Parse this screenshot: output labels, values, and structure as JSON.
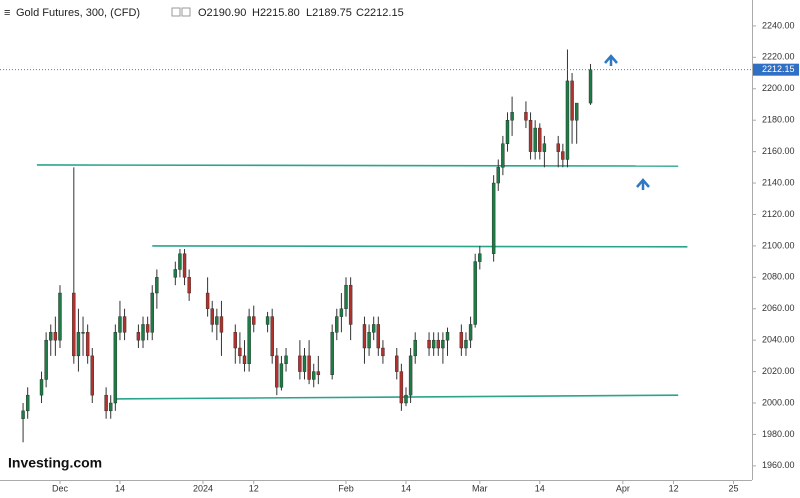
{
  "chart_data": {
    "type": "candlestick",
    "title": "Gold Futures, 300, (CFD)",
    "ohlc_header": [
      "O2190.90",
      "H2215.80",
      "L2189.75",
      "C2212.15"
    ],
    "logo": "Investing.com",
    "up_color": "#1e7b45",
    "down_color": "#b0322c",
    "x": [
      "2023-11-23",
      "2023-11-24",
      "2023-11-27",
      "2023-11-28",
      "2023-11-29",
      "2023-11-30",
      "2023-12-01",
      "2023-12-04",
      "2023-12-05",
      "2023-12-06",
      "2023-12-07",
      "2023-12-08",
      "2023-12-11",
      "2023-12-12",
      "2023-12-13",
      "2023-12-14",
      "2023-12-15",
      "2023-12-18",
      "2023-12-19",
      "2023-12-20",
      "2023-12-21",
      "2023-12-22",
      "2023-12-26",
      "2023-12-27",
      "2023-12-28",
      "2023-12-29",
      "2024-01-02",
      "2024-01-03",
      "2024-01-04",
      "2024-01-05",
      "2024-01-08",
      "2024-01-09",
      "2024-01-10",
      "2024-01-11",
      "2024-01-12",
      "2024-01-15",
      "2024-01-16",
      "2024-01-17",
      "2024-01-18",
      "2024-01-19",
      "2024-01-22",
      "2024-01-23",
      "2024-01-24",
      "2024-01-25",
      "2024-01-26",
      "2024-01-29",
      "2024-01-30",
      "2024-01-31",
      "2024-02-01",
      "2024-02-02",
      "2024-02-05",
      "2024-02-06",
      "2024-02-07",
      "2024-02-08",
      "2024-02-09",
      "2024-02-12",
      "2024-02-13",
      "2024-02-14",
      "2024-02-15",
      "2024-02-16",
      "2024-02-19",
      "2024-02-20",
      "2024-02-21",
      "2024-02-22",
      "2024-02-23",
      "2024-02-26",
      "2024-02-27",
      "2024-02-28",
      "2024-02-29",
      "2024-03-01",
      "2024-03-04",
      "2024-03-05",
      "2024-03-06",
      "2024-03-07",
      "2024-03-08",
      "2024-03-11",
      "2024-03-12",
      "2024-03-13",
      "2024-03-14",
      "2024-03-15",
      "2024-03-18",
      "2024-03-19",
      "2024-03-20",
      "2024-03-21",
      "2024-03-22",
      "2024-03-25"
    ],
    "open": [
      1990,
      1995,
      2005,
      2015,
      2040,
      2045,
      2040,
      2070,
      2030,
      2045,
      2045,
      2030,
      2005,
      1995,
      2000,
      2045,
      2055,
      2045,
      2040,
      2050,
      2045,
      2070,
      2080,
      2085,
      2095,
      2080,
      2070,
      2060,
      2050,
      2055,
      2045,
      2035,
      2030,
      2025,
      2055,
      2050,
      2055,
      2030,
      2010,
      2025,
      2030,
      2020,
      2030,
      2015,
      2020,
      2018,
      2045,
      2055,
      2060,
      2075,
      2050,
      2035,
      2045,
      2050,
      2035,
      2030,
      2020,
      2000,
      2005,
      2030,
      2040,
      2035,
      2040,
      2035,
      2040,
      2045,
      2035,
      2040,
      2050,
      2090,
      2095,
      2140,
      2150,
      2165,
      2180,
      2185,
      2180,
      2160,
      2175,
      2160,
      2165,
      2160,
      2155,
      2205,
      2180,
      2190.9
    ],
    "high": [
      2000,
      2010,
      2020,
      2045,
      2050,
      2055,
      2075,
      2150,
      2060,
      2055,
      2050,
      2035,
      2010,
      2005,
      2050,
      2065,
      2060,
      2050,
      2055,
      2055,
      2075,
      2085,
      2090,
      2098,
      2098,
      2085,
      2080,
      2065,
      2060,
      2065,
      2050,
      2045,
      2040,
      2060,
      2062,
      2058,
      2060,
      2035,
      2030,
      2035,
      2040,
      2035,
      2040,
      2025,
      2030,
      2050,
      2060,
      2070,
      2080,
      2080,
      2055,
      2050,
      2055,
      2055,
      2040,
      2035,
      2025,
      2010,
      2035,
      2045,
      2045,
      2045,
      2045,
      2045,
      2048,
      2050,
      2045,
      2055,
      2095,
      2100,
      2145,
      2155,
      2170,
      2185,
      2195,
      2192,
      2185,
      2180,
      2178,
      2170,
      2170,
      2165,
      2225,
      2210,
      2190,
      2215.8
    ],
    "low": [
      1975,
      1990,
      2000,
      2010,
      2030,
      2030,
      2035,
      2025,
      2020,
      2030,
      2025,
      2000,
      1990,
      1990,
      1995,
      2040,
      2040,
      2035,
      2035,
      2040,
      2040,
      2060,
      2075,
      2080,
      2075,
      2065,
      2055,
      2045,
      2040,
      2030,
      2025,
      2025,
      2020,
      2020,
      2045,
      2045,
      2025,
      2005,
      2008,
      2020,
      2015,
      2015,
      2012,
      2010,
      2012,
      2015,
      2040,
      2045,
      2055,
      2040,
      2025,
      2030,
      2040,
      2030,
      2025,
      2015,
      1995,
      1998,
      2000,
      2025,
      2030,
      2030,
      2030,
      2025,
      2030,
      2030,
      2030,
      2035,
      2048,
      2085,
      2090,
      2135,
      2145,
      2160,
      2170,
      2175,
      2155,
      2155,
      2155,
      2150,
      2150,
      2150,
      2150,
      2165,
      2165,
      2189.75
    ],
    "close": [
      1995,
      2005,
      2015,
      2040,
      2045,
      2040,
      2070,
      2030,
      2045,
      2045,
      2030,
      2005,
      1995,
      2000,
      2045,
      2055,
      2045,
      2040,
      2050,
      2045,
      2070,
      2080,
      2085,
      2095,
      2080,
      2070,
      2060,
      2050,
      2055,
      2045,
      2035,
      2030,
      2025,
      2055,
      2050,
      2055,
      2030,
      2010,
      2025,
      2030,
      2020,
      2030,
      2015,
      2020,
      2018,
      2045,
      2055,
      2060,
      2075,
      2050,
      2035,
      2045,
      2050,
      2035,
      2030,
      2020,
      2000,
      2005,
      2030,
      2040,
      2035,
      2040,
      2035,
      2040,
      2045,
      2035,
      2040,
      2050,
      2090,
      2095,
      2140,
      2150,
      2165,
      2180,
      2185,
      2180,
      2160,
      2175,
      2160,
      2165,
      2160,
      2155,
      2205,
      2180,
      2190.9,
      2212.15
    ],
    "price_label": 2212.15,
    "lines": [
      {
        "x": [
          "2023-11-26",
          "2024-04-13"
        ],
        "y": [
          2151.5,
          2150.8
        ]
      },
      {
        "x": [
          "2023-12-21",
          "2024-04-15"
        ],
        "y": [
          2100,
          2099.4
        ]
      },
      {
        "x": [
          "2023-12-13",
          "2024-04-13"
        ],
        "y": [
          2002.6,
          2005
        ]
      }
    ],
    "xlim": [
      "2023-11-18",
      "2024-04-29"
    ],
    "xticks": [
      {
        "value": "2023-12-01",
        "label": "Dec"
      },
      {
        "value": "2023-12-14",
        "label": "14"
      },
      {
        "value": "2024-01-01",
        "label": "2024"
      },
      {
        "value": "2024-01-12",
        "label": "12"
      },
      {
        "value": "2024-02-01",
        "label": "Feb"
      },
      {
        "value": "2024-02-14",
        "label": "14"
      },
      {
        "value": "2024-03-01",
        "label": "Mar"
      },
      {
        "value": "2024-03-14",
        "label": "14"
      },
      {
        "value": "2024-04-01",
        "label": "Apr"
      },
      {
        "value": "2024-04-12",
        "label": "12"
      },
      {
        "value": "2024-04-25",
        "label": "25"
      }
    ],
    "ylim": [
      1951,
      2256.5
    ],
    "yticks": [
      {
        "value": 1960,
        "label": "1960.00"
      },
      {
        "value": 1980,
        "label": "1980.00"
      },
      {
        "value": 2000,
        "label": "2000.00"
      },
      {
        "value": 2020,
        "label": "2020.00"
      },
      {
        "value": 2040,
        "label": "2040.00"
      },
      {
        "value": 2060,
        "label": "2060.00"
      },
      {
        "value": 2080,
        "label": "2080.00"
      },
      {
        "value": 2100,
        "label": "2100.00"
      },
      {
        "value": 2120,
        "label": "2120.00"
      },
      {
        "value": 2140,
        "label": "2140.00"
      },
      {
        "value": 2160,
        "label": "2160.00"
      },
      {
        "value": 2180,
        "label": "2180.00"
      },
      {
        "value": 2200,
        "label": "2200.00"
      },
      {
        "value": 2220,
        "label": "2220.00"
      },
      {
        "value": 2240,
        "label": "2240.00"
      }
    ]
  }
}
